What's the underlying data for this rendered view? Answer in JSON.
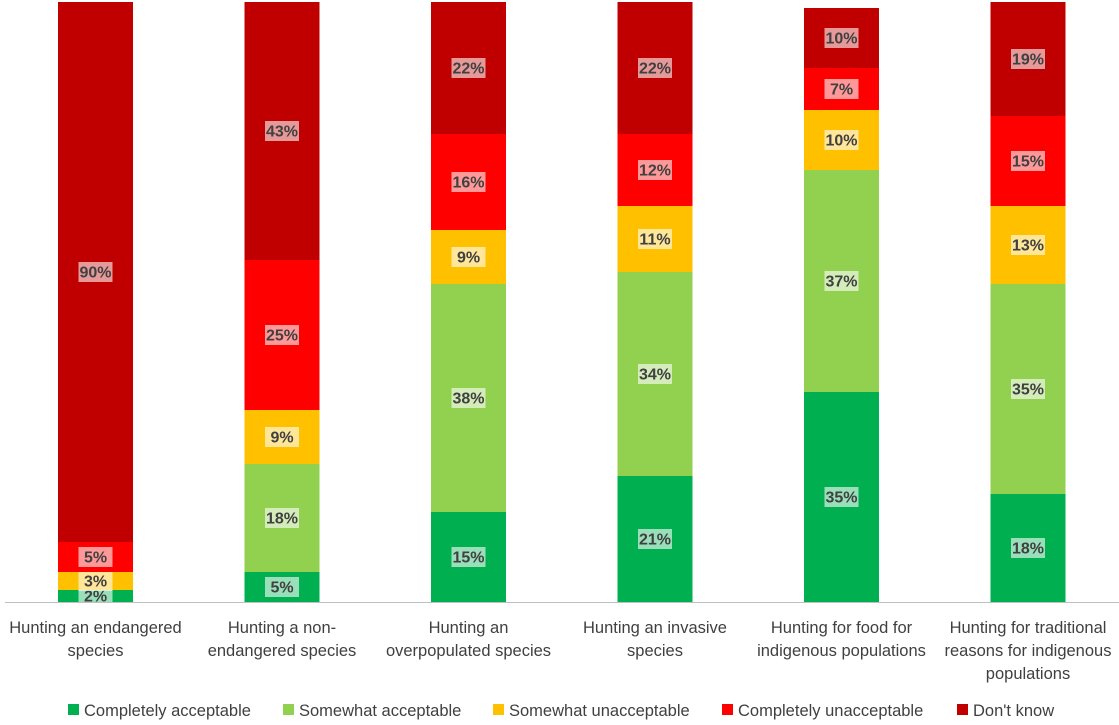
{
  "chart_data": {
    "type": "stacked-bar-100",
    "title": "",
    "xlabel": "",
    "ylabel": "",
    "ylim": [
      0,
      100
    ],
    "categories": [
      [
        "Hunting an endangered",
        "species"
      ],
      [
        "Hunting a non-",
        "endangered species"
      ],
      [
        "Hunting an",
        "overpopulated species"
      ],
      [
        "Hunting an invasive",
        "species"
      ],
      [
        "Hunting for food for",
        "indigenous populations"
      ],
      [
        "Hunting for traditional",
        "reasons for indigenous",
        "populations"
      ]
    ],
    "series": [
      {
        "name": "Completely acceptable",
        "color": "#00B050",
        "values": [
          2,
          5,
          15,
          21,
          35,
          18
        ]
      },
      {
        "name": "Somewhat acceptable",
        "color": "#92D050",
        "values": [
          0,
          18,
          38,
          34,
          37,
          35
        ]
      },
      {
        "name": "Somewhat unacceptable",
        "color": "#FFC000",
        "values": [
          3,
          9,
          9,
          11,
          10,
          13
        ]
      },
      {
        "name": "Completely unacceptable",
        "color": "#FF0000",
        "values": [
          5,
          25,
          16,
          12,
          7,
          15
        ]
      },
      {
        "name": "Don't know",
        "color": "#C00000",
        "values": [
          90,
          43,
          22,
          22,
          10,
          19
        ]
      }
    ],
    "value_suffix": "%",
    "legend_position": "bottom"
  }
}
